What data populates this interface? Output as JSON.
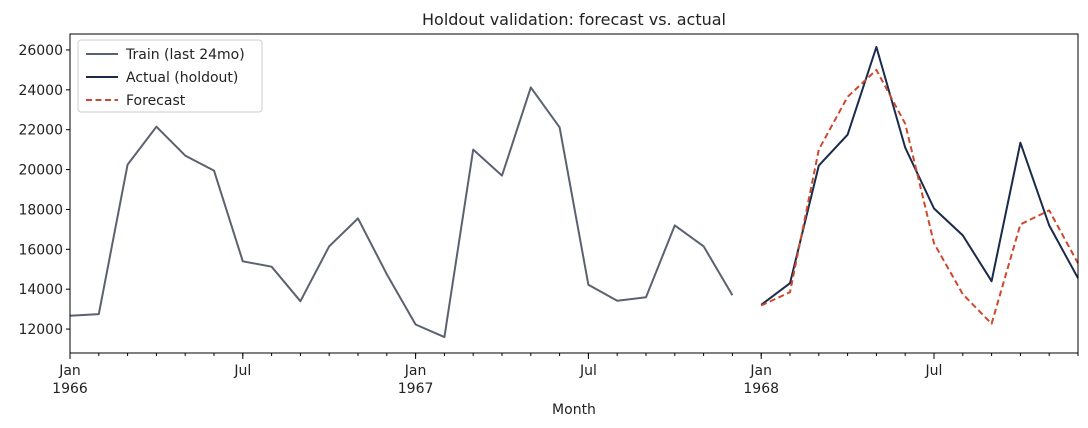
{
  "chart_data": {
    "type": "line",
    "title": "Holdout validation: forecast vs. actual",
    "xlabel": "Month",
    "ylabel": "",
    "ylim": [
      10800,
      26800
    ],
    "x_range_months": [
      "1966-01",
      "1968-12"
    ],
    "yticks": [
      12000,
      14000,
      16000,
      18000,
      20000,
      22000,
      24000,
      26000
    ],
    "xticks": [
      {
        "month": "1966-01",
        "label": "Jan",
        "sublabel": "1966"
      },
      {
        "month": "1966-07",
        "label": "Jul",
        "sublabel": ""
      },
      {
        "month": "1967-01",
        "label": "Jan",
        "sublabel": "1967"
      },
      {
        "month": "1967-07",
        "label": "Jul",
        "sublabel": ""
      },
      {
        "month": "1968-01",
        "label": "Jan",
        "sublabel": "1968"
      },
      {
        "month": "1968-07",
        "label": "Jul",
        "sublabel": ""
      }
    ],
    "grid": false,
    "legend_position": "top-left",
    "series": [
      {
        "name": "Train (last 24mo)",
        "color": "#5a6270",
        "style": "solid",
        "x": [
          "1966-01",
          "1966-02",
          "1966-03",
          "1966-04",
          "1966-05",
          "1966-06",
          "1966-07",
          "1966-08",
          "1966-09",
          "1966-10",
          "1966-11",
          "1966-12",
          "1967-01",
          "1967-02",
          "1967-03",
          "1967-04",
          "1967-05",
          "1967-06",
          "1967-07",
          "1967-08",
          "1967-09",
          "1967-10",
          "1967-11",
          "1967-12"
        ],
        "values": [
          12670,
          12750,
          20250,
          22150,
          20700,
          19950,
          15400,
          15130,
          13400,
          16150,
          17550,
          14750,
          12230,
          11600,
          21000,
          19700,
          24120,
          22120,
          14220,
          13420,
          13600,
          17200,
          16150,
          13700
        ]
      },
      {
        "name": "Actual (holdout)",
        "color": "#1a2a4a",
        "style": "solid",
        "x": [
          "1968-01",
          "1968-02",
          "1968-03",
          "1968-04",
          "1968-05",
          "1968-06",
          "1968-07",
          "1968-08",
          "1968-09",
          "1968-10",
          "1968-11",
          "1968-12"
        ],
        "values": [
          13220,
          14300,
          20200,
          21750,
          26150,
          21100,
          18050,
          16700,
          14400,
          21350,
          17200,
          14550
        ]
      },
      {
        "name": "Forecast",
        "color": "#cc4a2d",
        "style": "dashed",
        "x": [
          "1968-01",
          "1968-02",
          "1968-03",
          "1968-04",
          "1968-05",
          "1968-06",
          "1968-07",
          "1968-08",
          "1968-09",
          "1968-10",
          "1968-11",
          "1968-12"
        ],
        "values": [
          13180,
          13850,
          21000,
          23650,
          25000,
          22300,
          16300,
          13750,
          12270,
          17250,
          17950,
          15300
        ]
      }
    ]
  }
}
